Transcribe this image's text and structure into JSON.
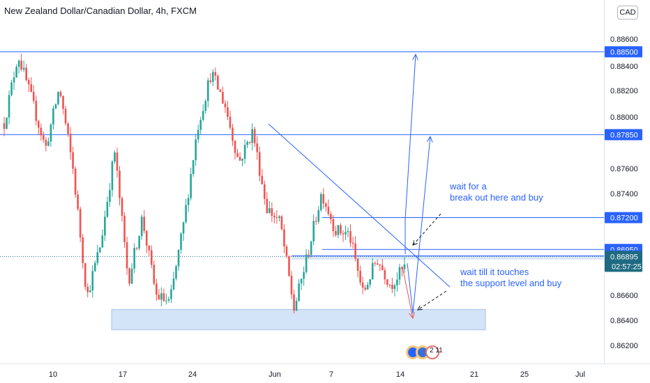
{
  "header": {
    "title": "New Zealand Dollar/Canadian Dollar, 4h, FXCM",
    "currency_button": "CAD"
  },
  "news_badge": "2 11",
  "colors": {
    "up": "#26a69a",
    "down": "#ef5350",
    "drawing": "#2962ff",
    "zone": "#bbd4f5",
    "label_bg": "#2962ff",
    "current_price": "#1e6a80"
  },
  "chart_data": {
    "type": "candlestick",
    "title": "New Zealand Dollar/Canadian Dollar, 4h, FXCM",
    "ylim": [
      0.861,
      0.8868
    ],
    "y_ticks": [
      "0.88600",
      "0.88400",
      "0.88200",
      "0.88000",
      "0.87600",
      "0.87400",
      "0.86600",
      "0.86400",
      "0.86200"
    ],
    "x_ticks": [
      "10",
      "17",
      "24",
      "Jun",
      "7",
      "14",
      "21",
      "25",
      "Jul"
    ],
    "grid": false,
    "horizontal_levels": [
      "0.88500",
      "0.87850",
      "0.87200",
      "0.86950",
      "0.86900"
    ],
    "current_price": "0.86895",
    "countdown": "02:57:25",
    "price_path": [
      [
        0.8794,
        0.8782
      ],
      [
        0.8848,
        0.8862
      ],
      [
        0.8812,
        0.8851
      ],
      [
        0.8774,
        0.8793
      ],
      [
        0.8822,
        0.8807
      ],
      [
        0.8757,
        0.8762
      ],
      [
        0.8658,
        0.867
      ],
      [
        0.87,
        0.8742
      ],
      [
        0.8772,
        0.8785
      ],
      [
        0.867,
        0.8682
      ],
      [
        0.872,
        0.8735
      ],
      [
        0.8659,
        0.8676
      ],
      [
        0.8653,
        0.8644
      ],
      [
        0.8715,
        0.873
      ],
      [
        0.879,
        0.8845
      ],
      [
        0.8834,
        0.8846
      ],
      [
        0.8808,
        0.879
      ],
      [
        0.8763,
        0.874
      ],
      [
        0.8788,
        0.8762
      ],
      [
        0.8728,
        0.8715
      ],
      [
        0.8716,
        0.8683
      ],
      [
        0.8648,
        0.8644
      ],
      [
        0.8692,
        0.8686
      ],
      [
        0.874,
        0.8742
      ],
      [
        0.871,
        0.8715
      ],
      [
        0.8707,
        0.8696
      ],
      [
        0.866,
        0.865
      ],
      [
        0.8688,
        0.8702
      ],
      [
        0.8667,
        0.8656
      ],
      [
        0.8681,
        0.8688
      ]
    ],
    "support_zone": {
      "from": "0.86320",
      "to": "0.86480"
    },
    "annotations": [
      "wait for a",
      "break out here and buy",
      "wait till it touches",
      "the support level and buy"
    ]
  }
}
